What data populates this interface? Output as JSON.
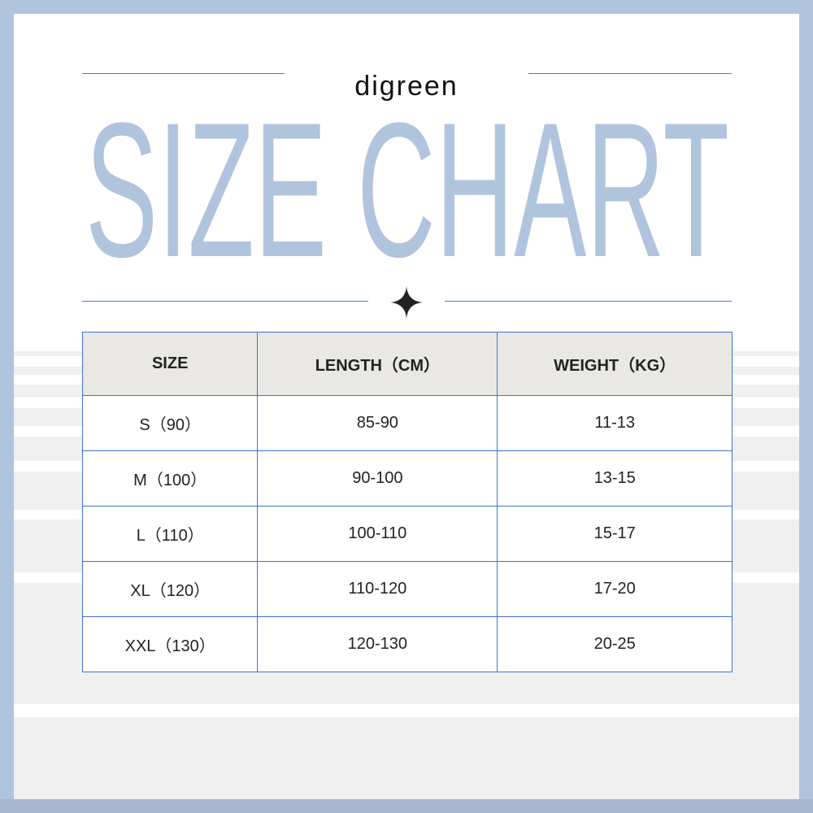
{
  "brand": "digreen",
  "title": "SIZE CHART",
  "colors": {
    "border": "#b0c4de",
    "title": "#b0c4de",
    "lines": "#4a7bd0",
    "header_bg": "#e9e8e5"
  },
  "table": {
    "headers": [
      "SIZE",
      "LENGTH（CM）",
      "WEIGHT（KG）"
    ],
    "rows": [
      [
        "S（90）",
        "85-90",
        "11-13"
      ],
      [
        "M（100）",
        "90-100",
        "13-15"
      ],
      [
        "L（110）",
        "100-110",
        "15-17"
      ],
      [
        "XL（120）",
        "110-120",
        "17-20"
      ],
      [
        "XXL（130）",
        "120-130",
        "20-25"
      ]
    ]
  }
}
